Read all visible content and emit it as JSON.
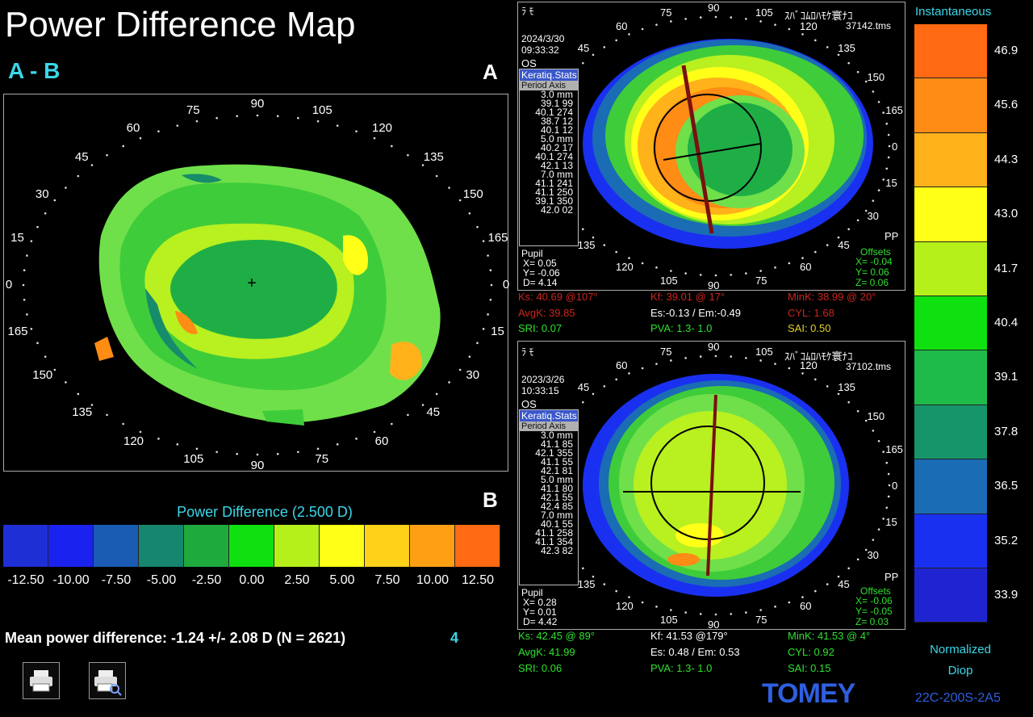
{
  "header": {
    "title": "Power Difference Map",
    "subtitle": "A - B",
    "label_a": "A",
    "label_b": "B"
  },
  "difference_map": {
    "axis_labels": [
      "90",
      "105",
      "120",
      "135",
      "150",
      "165",
      "0",
      "15",
      "30",
      "45",
      "60",
      "75",
      "90",
      "105",
      "120",
      "135",
      "150",
      "165",
      "0",
      "15",
      "30",
      "45",
      "60",
      "75"
    ]
  },
  "difference_scale": {
    "title": "Power Difference (2.500 D)",
    "colors": [
      "#1f2fd6",
      "#1a22f0",
      "#1a5cb4",
      "#17866e",
      "#1faa3e",
      "#0fe010",
      "#b6f01a",
      "#ffff18",
      "#ffd21a",
      "#ffa014",
      "#ff6a12"
    ],
    "labels": [
      "-12.50",
      "-10.00",
      "-7.50",
      "-5.00",
      "-2.50",
      "0.00",
      "2.50",
      "5.00",
      "7.50",
      "10.00",
      "12.50"
    ]
  },
  "summary": {
    "mean_text": "Mean power difference: -1.24 +/-  2.08 D (N = 2621)",
    "count_badge": "4"
  },
  "toolbar": {
    "print_icon": "printer-icon",
    "print_preview_icon": "print-preview-icon"
  },
  "exam_a": {
    "top_left_code": "ﾗ  ﾓ",
    "date": "2024/3/30",
    "time": "09:33:32",
    "eye": "OS",
    "patient": "ｽﾊﾞｺﾑﾛﾊﾓｹ寰ﾅｺ",
    "file": "37142.tms",
    "stats_tab1": "Keratiq.Stats",
    "stats_tab2": "Period Axis",
    "stats_lines": [
      "3.0 mm",
      "39.1 99",
      "40.1 274",
      "38.7 12",
      "40.1 12",
      "5.0 mm",
      "40.2 17",
      "40.1 274",
      "42.1 13",
      "7.0 mm",
      "41.1 241",
      "41.1 250",
      "39.1 350",
      "42.0 02"
    ],
    "pupil_label": "Pupil",
    "pupil_x": "X=  0.05",
    "pupil_y": "Y= -0.06",
    "pupil_d": "D=  4.14",
    "pp": "PP",
    "offsets_label": "Offsets",
    "offset_x": "X= -0.04",
    "offset_y": "Y=  0.06",
    "offset_z": "Z=  0.06",
    "ks": "Ks: 40.69 @107°",
    "kf": "Kf: 39.01 @ 17°",
    "mink": "MinK: 38.99 @ 20°",
    "avgk": "AvgK: 39.85",
    "es": "Es:-0.13 / Em:-0.49",
    "cyl": "CYL:  1.68",
    "sri": "SRI: 0.07",
    "pva": "PVA:   1.3-  1.0",
    "sai": "SAI: 0.50"
  },
  "exam_b": {
    "top_left_code": "ﾗ  ﾓ",
    "date": "2023/3/26",
    "time": "10:33:15",
    "eye": "OS",
    "patient": "ｽﾊﾞｺﾑﾛﾊﾓｹ寰ﾅｺ",
    "file": "37102.tms",
    "stats_tab1": "Keratiq.Stats",
    "stats_tab2": "Period Axis",
    "stats_lines": [
      "3.0 mm",
      "41.1 85",
      "42.1 355",
      "41.1 55",
      "42.1 81",
      "5.0 mm",
      "41.1 80",
      "42.1 55",
      "42.4 85",
      "7.0 mm",
      "40.1 55",
      "41.1 258",
      "41.1 354",
      "42.3 82"
    ],
    "pupil_label": "Pupil",
    "pupil_x": "X=  0.28",
    "pupil_y": "Y=  0.01",
    "pupil_d": "D=  4.42",
    "pp": "PP",
    "offsets_label": "Offsets",
    "offset_x": "X= -0.06",
    "offset_y": "Y= -0.05",
    "offset_z": "Z=  0.03",
    "ks": "Ks: 42.45 @ 89°",
    "kf": "Kf: 41.53 @179°",
    "mink": "MinK: 41.53 @  4°",
    "avgk": "AvgK: 41.99",
    "es": "Es: 0.48 / Em: 0.53",
    "cyl": "CYL:  0.92",
    "sri": "SRI: 0.06",
    "pva": "PVA:   1.3-  1.0",
    "sai": "SAI: 0.15"
  },
  "colorbar": {
    "title": "Instantaneous",
    "colors": [
      "#ff6a12",
      "#ff8c14",
      "#ffb21a",
      "#ffff18",
      "#b6f01a",
      "#0fe010",
      "#1fbb4a",
      "#17956a",
      "#1a6cb4",
      "#1a30f0",
      "#2024d0"
    ],
    "labels": [
      "46.9",
      "45.6",
      "44.3",
      "43.0",
      "41.7",
      "40.4",
      "39.1",
      "37.8",
      "36.5",
      "35.2",
      "33.9"
    ],
    "footer1": "Normalized",
    "footer2": "Diop"
  },
  "brand": {
    "logo": "TOMEY",
    "model": "22C-200S-2A5"
  }
}
